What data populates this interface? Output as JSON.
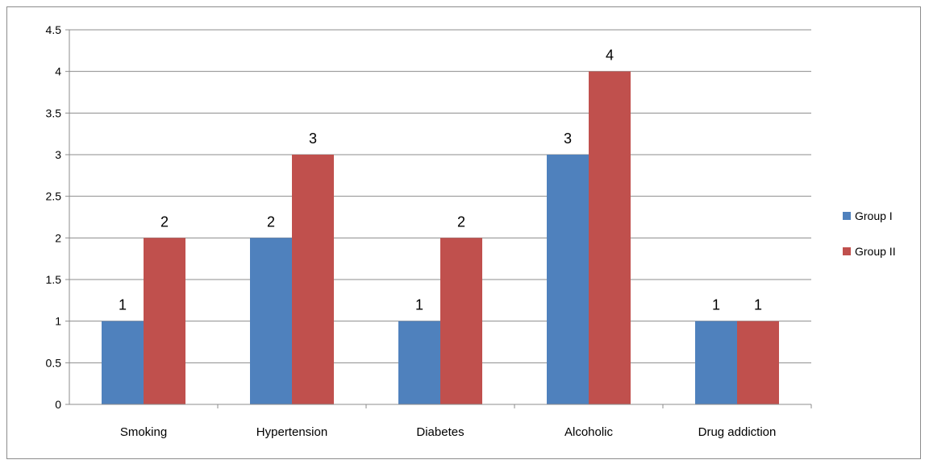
{
  "chart_data": {
    "type": "bar",
    "categories": [
      "Smoking",
      "Hypertension",
      "Diabetes",
      "Alcoholic",
      "Drug addiction"
    ],
    "series": [
      {
        "name": "Group I",
        "values": [
          1,
          2,
          1,
          3,
          1
        ],
        "color": "#4f81bd"
      },
      {
        "name": "Group II",
        "values": [
          2,
          3,
          2,
          4,
          1
        ],
        "color": "#c0504d"
      }
    ],
    "ylim": [
      0,
      4.5
    ],
    "yticks": [
      "0",
      "0.5",
      "1",
      "1.5",
      "2",
      "2.5",
      "3",
      "3.5",
      "4",
      "4.5"
    ],
    "grid": true,
    "legend": "right",
    "title": "",
    "xlabel": "",
    "ylabel": ""
  }
}
